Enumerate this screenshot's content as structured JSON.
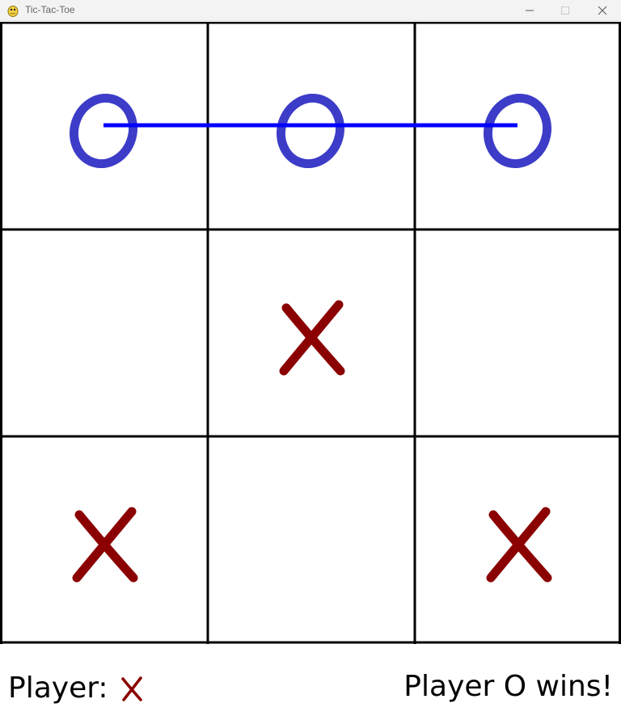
{
  "window": {
    "title": "Tic-Tac-Toe",
    "icon": "python-snake-icon",
    "controls": [
      "minimize",
      "maximize",
      "close"
    ]
  },
  "board": {
    "cells": [
      [
        "O",
        "O",
        "O"
      ],
      [
        "",
        "X",
        ""
      ],
      [
        "X",
        "",
        "X"
      ]
    ],
    "winning_line": {
      "from": [
        0,
        0
      ],
      "to": [
        0,
        2
      ],
      "color": "#0000ff"
    }
  },
  "colors": {
    "o_mark": "#3c3cc8",
    "x_mark": "#8b0000",
    "grid": "#000000",
    "win_line": "#0000ff"
  },
  "status": {
    "player_label": "Player:",
    "current_player": "X",
    "result": "Player O wins!"
  }
}
